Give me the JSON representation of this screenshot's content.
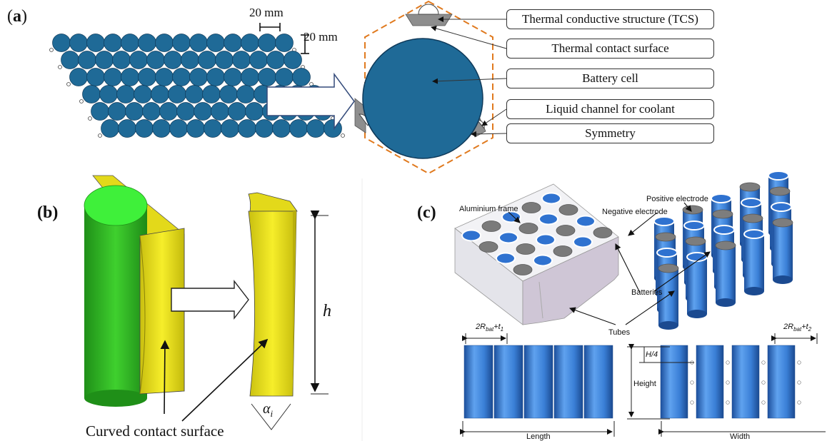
{
  "panel_a": {
    "label_paren_open": "(",
    "label_letter": "a",
    "label_paren_close": ")",
    "dim_horizontal": "20 mm",
    "dim_vertical": "20 mm",
    "callouts": [
      "Thermal conductive structure (TCS)",
      "Thermal contact surface",
      "Battery cell",
      "Liquid channel for coolant",
      "Symmetry"
    ]
  },
  "panel_b": {
    "label": "(b)",
    "height_symbol": "h",
    "angle_symbol": "α",
    "angle_subscript": "i",
    "caption": "Curved contact surface"
  },
  "panel_c": {
    "label": "(c)",
    "aluminium_frame": "Aluminium frame",
    "negative_electrode": "Negative electrode",
    "positive_electrode": "Positive electrode",
    "batteries": "Batteries",
    "tubes": "Tubes",
    "pitch_left_prefix": "2R",
    "pitch_left_sub": "bat",
    "pitch_left_suffix": "+t",
    "pitch_left_sub2": "1",
    "pitch_right_prefix": "2R",
    "pitch_right_sub": "bat",
    "pitch_right_suffix": "+t",
    "pitch_right_sub2": "2",
    "quarter_height": "H/4",
    "height": "Height",
    "length": "Length",
    "width": "Width"
  },
  "colors": {
    "cell_blue": "#1f6a97",
    "tcs_grey": "#8c8c8c",
    "tcs_yellow": "#f3ea1a",
    "cylinder_green": "#3fcf2e",
    "battery_blue": "#3a7fd6"
  }
}
